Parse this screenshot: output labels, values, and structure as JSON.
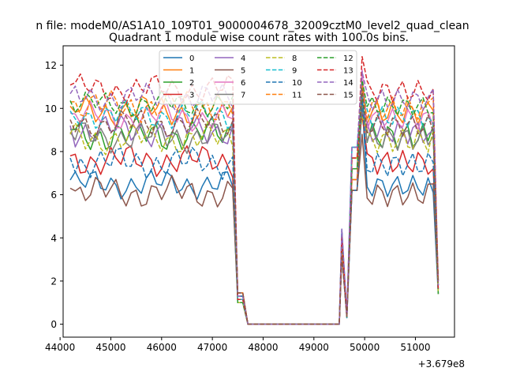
{
  "suptitle": "n file: modeM0/AS1A10_109T01_9000004678_32009cztM0_level2_quad_clean",
  "chart_data": {
    "type": "line",
    "title": "Quadrant 1 module wise count rates with 100.0s bins.",
    "xlabel": "",
    "ylabel": "",
    "x_offset_label": "+3.679e8",
    "xlim": [
      44060,
      51770
    ],
    "ylim": [
      -0.6,
      12.9
    ],
    "x_ticks": [
      44000,
      45000,
      46000,
      47000,
      48000,
      49000,
      50000,
      51000
    ],
    "y_ticks": [
      0,
      2,
      4,
      6,
      8,
      10,
      12
    ],
    "grid": false,
    "legend_position": "top-center",
    "legend_columns": 4,
    "series": [
      {
        "name": "0",
        "color": "#1f77b4",
        "dash": "solid",
        "level": 6.5,
        "amp": 0.45,
        "high": 10.0
      },
      {
        "name": "1",
        "color": "#ff7f0e",
        "dash": "solid",
        "level": 9.9,
        "amp": 0.5,
        "high": 10.8
      },
      {
        "name": "2",
        "color": "#2ca02c",
        "dash": "solid",
        "level": 8.8,
        "amp": 0.55,
        "high": 10.2
      },
      {
        "name": "3",
        "color": "#d62728",
        "dash": "solid",
        "level": 7.6,
        "amp": 0.5,
        "high": 9.4
      },
      {
        "name": "4",
        "color": "#9467bd",
        "dash": "solid",
        "level": 9.0,
        "amp": 0.5,
        "high": 9.6
      },
      {
        "name": "5",
        "color": "#8c564b",
        "dash": "solid",
        "level": 6.1,
        "amp": 0.5,
        "high": 8.5
      },
      {
        "name": "6",
        "color": "#e377c2",
        "dash": "solid",
        "level": 9.6,
        "amp": 0.45,
        "high": 11.5
      },
      {
        "name": "7",
        "color": "#7f7f7f",
        "dash": "solid",
        "level": 8.7,
        "amp": 0.5,
        "high": 9.8
      },
      {
        "name": "8",
        "color": "#bcbd22",
        "dash": "dashed",
        "level": 8.6,
        "amp": 0.5,
        "high": 9.3
      },
      {
        "name": "9",
        "color": "#17becf",
        "dash": "dashed",
        "level": 9.7,
        "amp": 0.45,
        "high": 10.4
      },
      {
        "name": "10",
        "color": "#1f77b4",
        "dash": "dashed",
        "level": 7.5,
        "amp": 0.5,
        "high": 10.2
      },
      {
        "name": "11",
        "color": "#ff7f0e",
        "dash": "dashed",
        "level": 10.1,
        "amp": 0.5,
        "high": 10.8
      },
      {
        "name": "12",
        "color": "#2ca02c",
        "dash": "dashed",
        "level": 10.2,
        "amp": 0.4,
        "high": 11.0
      },
      {
        "name": "13",
        "color": "#d62728",
        "dash": "dashed",
        "level": 10.9,
        "amp": 0.45,
        "high": 12.1
      },
      {
        "name": "14",
        "color": "#9467bd",
        "dash": "dashed",
        "level": 10.5,
        "amp": 0.45,
        "high": 11.4
      },
      {
        "name": "15",
        "color": "#8c564b",
        "dash": "dashed",
        "level": 9.3,
        "amp": 0.45,
        "high": 10.6
      }
    ]
  }
}
